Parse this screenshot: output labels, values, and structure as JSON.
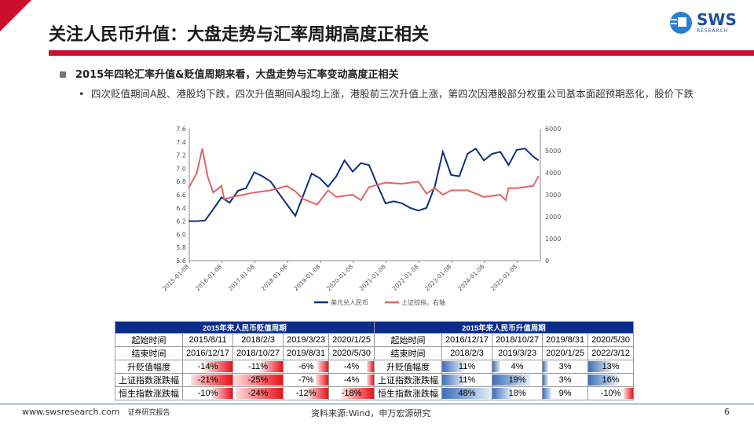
{
  "header": {
    "title": "关注人民币升值：大盘走势与汇率周期高度正相关",
    "logo_text": "SWS",
    "logo_sub": "RESEARCH",
    "accent": "#c8102e"
  },
  "bullets": {
    "level1": "2015年四轮汇率升值&贬值周期来看，大盘走势与汇率变动高度正相关",
    "level2": "四次贬值期间A股、港股均下跌，四次升值期间A股均上涨，港股前三次升值上涨，第四次因港股部分权重公司基本面超预期恶化，股价下跌"
  },
  "chart_data": {
    "type": "line",
    "ylim": [
      5.6,
      7.6
    ],
    "y2lim": [
      0,
      6000
    ],
    "yticks": [
      "7.6",
      "7.4",
      "7.2",
      "7.0",
      "6.8",
      "6.6",
      "6.4",
      "6.2",
      "6.0",
      "5.8",
      "5.6"
    ],
    "y2ticks": [
      "6000",
      "5000",
      "4000",
      "3000",
      "2000",
      "1000",
      "0"
    ],
    "xticks": [
      "2015-01-08",
      "2016-01-08",
      "2017-01-08",
      "2018-01-08",
      "2019-01-08",
      "2020-01-08",
      "2021-01-08",
      "2022-01-08",
      "2023-01-08",
      "2024-01-08",
      "2025-01-08"
    ],
    "legend_placement": "bottom",
    "series": [
      {
        "name": "美元兑人民币",
        "color": "#0d2f7a",
        "axis": "left",
        "x": [
          "2015-01",
          "2015-04",
          "2015-07",
          "2015-10",
          "2016-01",
          "2016-04",
          "2016-07",
          "2016-10",
          "2017-01",
          "2017-04",
          "2017-07",
          "2017-10",
          "2018-01",
          "2018-04",
          "2018-07",
          "2018-10",
          "2019-01",
          "2019-04",
          "2019-07",
          "2019-10",
          "2020-01",
          "2020-04",
          "2020-07",
          "2020-10",
          "2021-01",
          "2021-04",
          "2021-07",
          "2021-10",
          "2022-01",
          "2022-04",
          "2022-07",
          "2022-10",
          "2023-01",
          "2023-04",
          "2023-07",
          "2023-10",
          "2024-01",
          "2024-04",
          "2024-07",
          "2024-10",
          "2025-01",
          "2025-04",
          "2025-07",
          "2025-09"
        ],
        "values": [
          6.2,
          6.2,
          6.21,
          6.38,
          6.56,
          6.48,
          6.66,
          6.7,
          6.94,
          6.88,
          6.8,
          6.62,
          6.45,
          6.28,
          6.6,
          6.92,
          6.85,
          6.72,
          6.88,
          7.12,
          6.95,
          7.08,
          7.05,
          6.75,
          6.47,
          6.5,
          6.47,
          6.4,
          6.36,
          6.4,
          6.72,
          7.25,
          6.9,
          6.88,
          7.22,
          7.3,
          7.12,
          7.22,
          7.25,
          7.05,
          7.28,
          7.3,
          7.18,
          7.12
        ]
      },
      {
        "name": "上证综指，右轴",
        "color": "#e06666",
        "axis": "right",
        "x": [
          "2015-01",
          "2015-04",
          "2015-06",
          "2015-08",
          "2015-10",
          "2016-01",
          "2016-02",
          "2016-07",
          "2017-01",
          "2017-07",
          "2018-01",
          "2018-04",
          "2018-07",
          "2018-12",
          "2019-04",
          "2019-07",
          "2020-01",
          "2020-04",
          "2020-07",
          "2021-01",
          "2021-07",
          "2022-01",
          "2022-04",
          "2022-07",
          "2022-10",
          "2023-01",
          "2023-07",
          "2024-01",
          "2024-07",
          "2024-09",
          "2024-10",
          "2025-01",
          "2025-07",
          "2025-09"
        ],
        "values": [
          3300,
          4000,
          5100,
          3800,
          3100,
          3400,
          2800,
          2950,
          3100,
          3200,
          3400,
          3150,
          2800,
          2550,
          3200,
          2900,
          3000,
          2750,
          3350,
          3550,
          3500,
          3600,
          3050,
          3300,
          3000,
          3200,
          3200,
          2900,
          3000,
          2750,
          3300,
          3300,
          3400,
          3850
        ]
      }
    ]
  },
  "table": {
    "dep_title": "2015年来人民币贬值周期",
    "app_title": "2015年来人民币升值周期",
    "dep": [
      [
        "起始时间",
        "2015/8/11",
        "2018/2/3",
        "2019/3/23",
        "2020/1/25"
      ],
      [
        "结束时间",
        "2016/12/17",
        "2018/10/27",
        "2019/8/31",
        "2020/5/30"
      ],
      [
        "升贬值幅度",
        "-14%",
        "-11%",
        "-6%",
        "-4%"
      ],
      [
        "上证指数涨跌幅",
        "-21%",
        "-25%",
        "-7%",
        "-4%"
      ],
      [
        "恒生指数涨跌幅",
        "-10%",
        "-24%",
        "-12%",
        "-18%"
      ]
    ],
    "app": [
      [
        "起始时间",
        "2016/12/17",
        "2018/10/27",
        "2019/8/31",
        "2020/5/30"
      ],
      [
        "结束时间",
        "2018/2/3",
        "2019/3/23",
        "2020/1/25",
        "2022/3/12"
      ],
      [
        "升贬值幅度",
        "11%",
        "4%",
        "3%",
        "13%"
      ],
      [
        "上证指数涨跌幅",
        "11%",
        "19%",
        "3%",
        "16%"
      ],
      [
        "恒生指数涨跌幅",
        "48%",
        "18%",
        "9%",
        "-10%"
      ]
    ]
  },
  "footer": {
    "url": "www.swsresearch.com",
    "label": "证券研究报告",
    "source": "资料来源:Wind，申万宏源研究",
    "page": "6"
  }
}
